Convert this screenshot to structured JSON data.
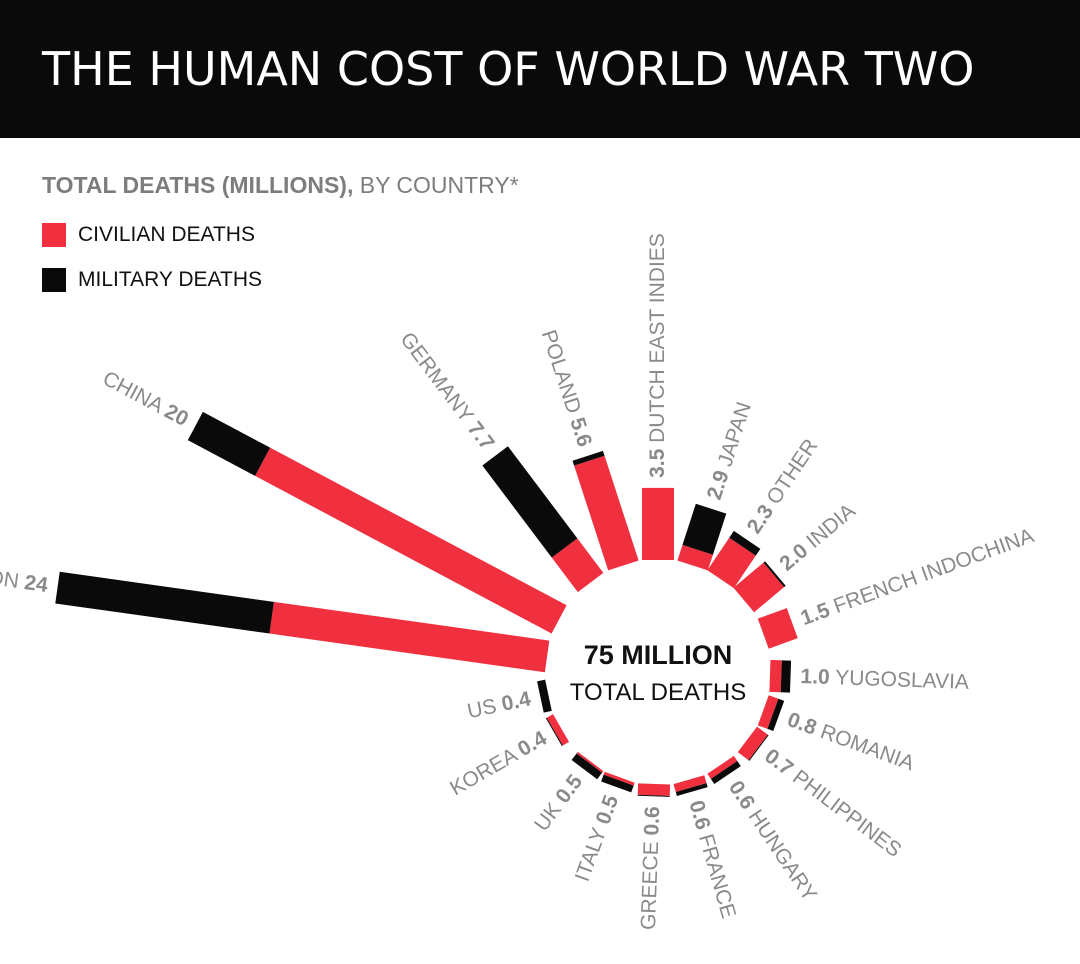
{
  "header": {
    "title": "THE HUMAN COST OF WORLD WAR TWO"
  },
  "subtitle": {
    "bold": "TOTAL DEATHS (MILLIONS),",
    "rest": " BY COUNTRY*"
  },
  "legend": [
    {
      "label": "CIVILIAN DEATHS",
      "color": "#f0303f"
    },
    {
      "label": "MILITARY DEATHS",
      "color": "#0a0a0a"
    }
  ],
  "center": {
    "value": "75 MILLION",
    "label": "TOTAL DEATHS"
  },
  "colors": {
    "civilian": "#f0303f",
    "military": "#0a0a0a",
    "label": "#8a8a8a"
  },
  "chart_data": {
    "type": "radial-bar",
    "title": "THE HUMAN COST OF WORLD WAR TWO",
    "subtitle": "TOTAL DEATHS (MILLIONS), BY COUNTRY*",
    "unit": "millions",
    "series": [
      "CIVILIAN DEATHS",
      "MILITARY DEATHS"
    ],
    "countries": [
      {
        "name": "SOVIET UNION",
        "total": 24,
        "total_label": "24",
        "civilian": 13.5,
        "military": 10.5,
        "angle": -172,
        "label_side": "inner",
        "label_order": "name-first"
      },
      {
        "name": "CHINA",
        "total": 20,
        "total_label": "20",
        "civilian": 16.3,
        "military": 3.7,
        "angle": -152,
        "label_side": "inner",
        "label_order": "name-first"
      },
      {
        "name": "GERMANY",
        "total": 7.7,
        "total_label": "7.7",
        "civilian": 2.1,
        "military": 5.6,
        "angle": -127,
        "label_side": "inner",
        "label_order": "name-first"
      },
      {
        "name": "POLAND",
        "total": 5.6,
        "total_label": "5.6",
        "civilian": 5.35,
        "military": 0.25,
        "angle": -108,
        "label_side": "inner",
        "label_order": "name-first"
      },
      {
        "name": "DUTCH EAST INDIES",
        "total": 3.5,
        "total_label": "3.5",
        "civilian": 3.5,
        "military": 0,
        "angle": -90,
        "label_side": "inner",
        "label_order": "name-first"
      },
      {
        "name": "JAPAN",
        "total": 2.9,
        "total_label": "2.9",
        "civilian": 0.8,
        "military": 2.1,
        "angle": -72,
        "label_side": "outer",
        "label_order": "value-first"
      },
      {
        "name": "OTHER",
        "total": 2.3,
        "total_label": "2.3",
        "civilian": 1.9,
        "military": 0.4,
        "angle": -56,
        "label_side": "outer",
        "label_order": "value-first"
      },
      {
        "name": "INDIA",
        "total": 2.0,
        "total_label": "2.0",
        "civilian": 1.9,
        "military": 0.1,
        "angle": -40,
        "label_side": "outer",
        "label_order": "value-first"
      },
      {
        "name": "FRENCH INDOCHINA",
        "total": 1.5,
        "total_label": "1.5",
        "civilian": 1.5,
        "military": 0,
        "angle": -20,
        "label_side": "outer",
        "label_order": "value-first"
      },
      {
        "name": "YUGOSLAVIA",
        "total": 1.0,
        "total_label": "1.0",
        "civilian": 0.55,
        "military": 0.45,
        "angle": 2,
        "label_side": "outer",
        "label_order": "value-first"
      },
      {
        "name": "ROMANIA",
        "total": 0.8,
        "total_label": "0.8",
        "civilian": 0.5,
        "military": 0.3,
        "angle": 20,
        "label_side": "outer",
        "label_order": "value-first"
      },
      {
        "name": "PHILIPPINES",
        "total": 0.7,
        "total_label": "0.7",
        "civilian": 0.65,
        "military": 0.05,
        "angle": 37,
        "label_side": "outer",
        "label_order": "value-first"
      },
      {
        "name": "HUNGARY",
        "total": 0.6,
        "total_label": "0.6",
        "civilian": 0.3,
        "military": 0.3,
        "angle": 56,
        "label_side": "outer",
        "label_order": "value-first"
      },
      {
        "name": "FRANCE",
        "total": 0.6,
        "total_label": "0.6",
        "civilian": 0.4,
        "military": 0.2,
        "angle": 74,
        "label_side": "outer",
        "label_order": "value-first"
      },
      {
        "name": "GREECE",
        "total": 0.6,
        "total_label": "0.6",
        "civilian": 0.55,
        "military": 0.05,
        "angle": 92,
        "label_side": "inner",
        "label_order": "name-first"
      },
      {
        "name": "ITALY",
        "total": 0.5,
        "total_label": "0.5",
        "civilian": 0.15,
        "military": 0.35,
        "angle": 110,
        "label_side": "inner",
        "label_order": "name-first"
      },
      {
        "name": "UK",
        "total": 0.5,
        "total_label": "0.5",
        "civilian": 0.1,
        "military": 0.4,
        "angle": 127,
        "label_side": "inner",
        "label_order": "name-first"
      },
      {
        "name": "KOREA",
        "total": 0.4,
        "total_label": "0.4",
        "civilian": 0.35,
        "military": 0.05,
        "angle": 150,
        "label_side": "inner",
        "label_order": "name-first"
      },
      {
        "name": "US",
        "total": 0.4,
        "total_label": "0.4",
        "civilian": 0.0,
        "military": 0.4,
        "angle": 168,
        "label_side": "inner",
        "label_order": "name-first"
      }
    ]
  }
}
